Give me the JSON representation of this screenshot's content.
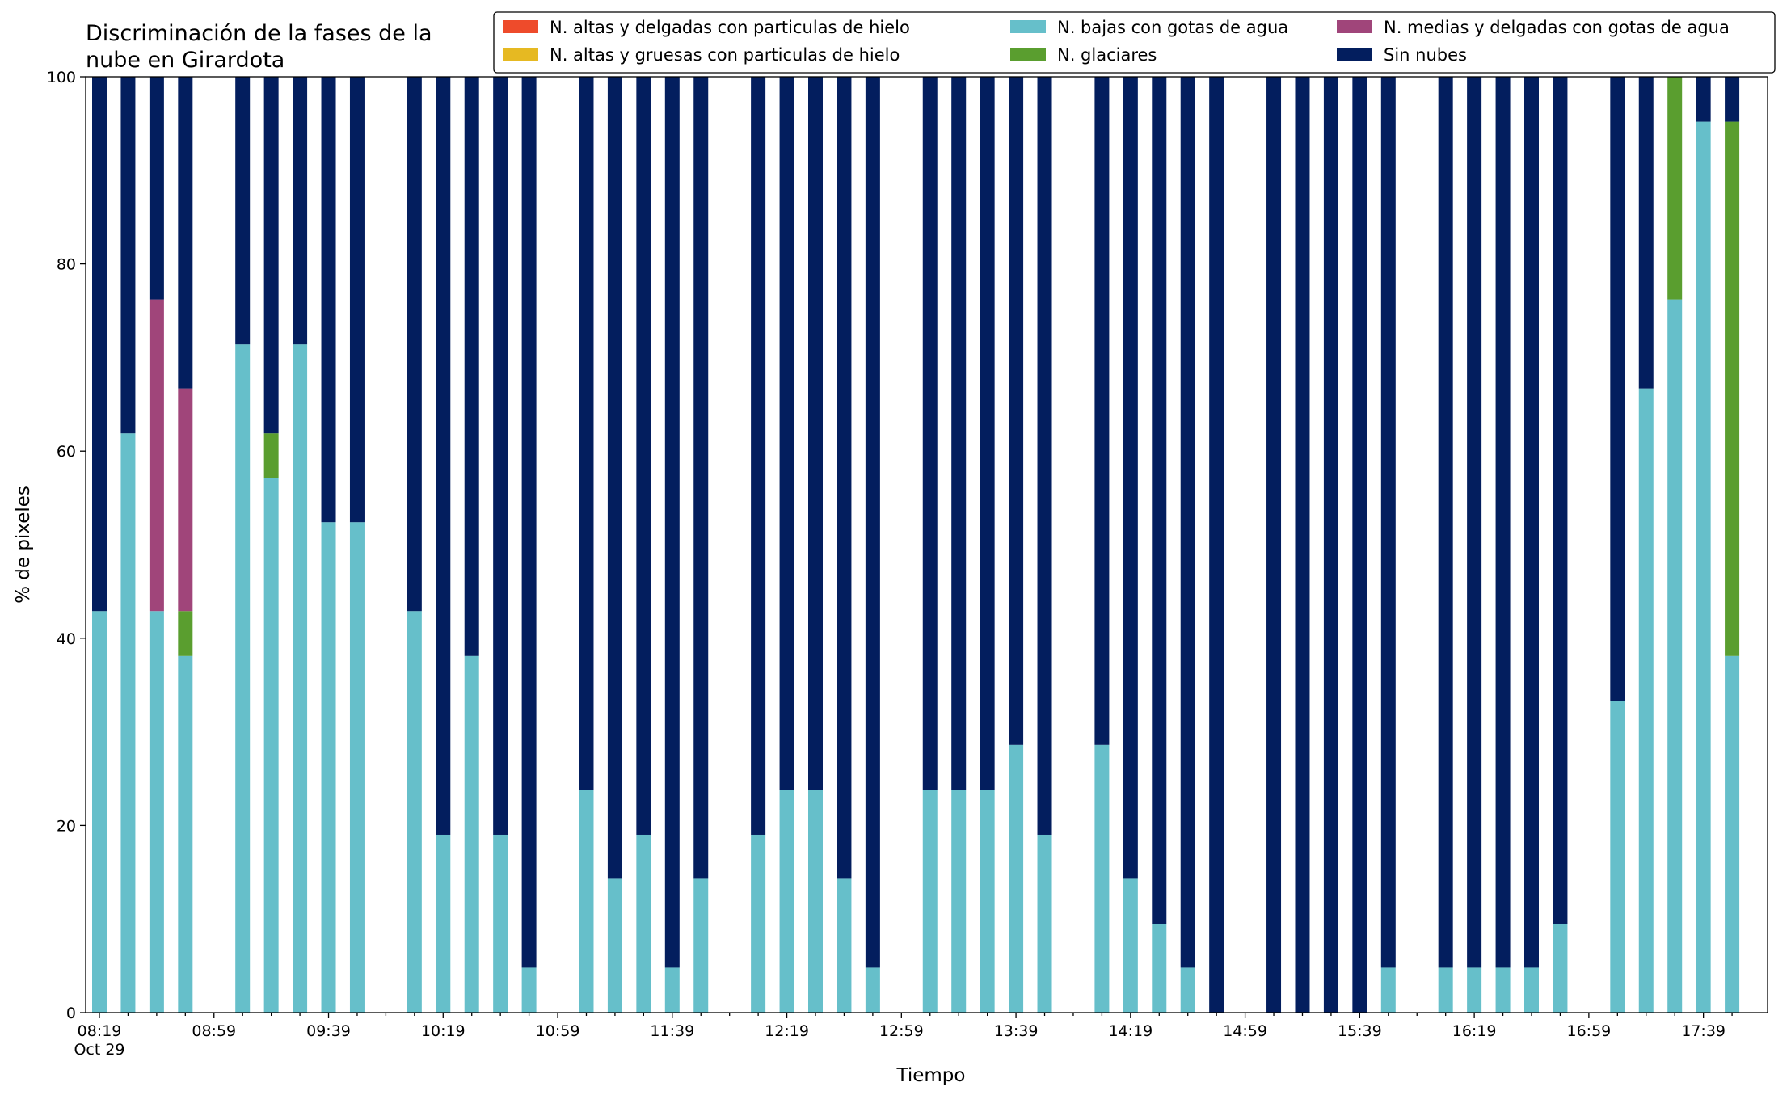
{
  "chart_data": {
    "type": "bar",
    "stacked": true,
    "title_lines": [
      "Discriminación de la fases de la",
      "nube en Girardota"
    ],
    "xlabel": "Tiempo",
    "ylabel": "% de pixeles",
    "ylim": [
      0,
      100
    ],
    "y_ticks": [
      "0",
      "20",
      "40",
      "60",
      "80",
      "100"
    ],
    "x_tick_labels": [
      "08:19",
      "08:59",
      "09:39",
      "10:19",
      "10:59",
      "11:39",
      "12:19",
      "12:59",
      "13:39",
      "14:19",
      "14:59",
      "15:39",
      "16:19",
      "16:59",
      "17:39"
    ],
    "x_date_label": "Oct 29",
    "x_interval_minutes": 10,
    "grid": false,
    "legend_position": "top-right",
    "slots": [
      "08:19",
      "08:29",
      "08:39",
      "08:49",
      "08:59",
      "09:09",
      "09:19",
      "09:29",
      "09:39",
      "09:49",
      "09:59",
      "10:09",
      "10:19",
      "10:29",
      "10:39",
      "10:49",
      "10:59",
      "11:09",
      "11:19",
      "11:29",
      "11:39",
      "11:49",
      "11:59",
      "12:09",
      "12:19",
      "12:29",
      "12:39",
      "12:49",
      "12:59",
      "13:09",
      "13:19",
      "13:29",
      "13:39",
      "13:49",
      "13:59",
      "14:09",
      "14:19",
      "14:29",
      "14:39",
      "14:49",
      "14:59",
      "15:09",
      "15:19",
      "15:29",
      "15:39",
      "15:49",
      "15:59",
      "16:09",
      "16:19",
      "16:29",
      "16:39",
      "16:49",
      "16:59",
      "17:09",
      "17:19",
      "17:29",
      "17:39",
      "17:49"
    ],
    "bars": [
      {
        "t": "08:19",
        "bajas": 42.9,
        "glaciares": 0,
        "medias": 0,
        "sin": 57.1
      },
      {
        "t": "08:29",
        "bajas": 61.9,
        "glaciares": 0,
        "medias": 0,
        "sin": 38.1
      },
      {
        "t": "08:39",
        "bajas": 42.9,
        "glaciares": 0,
        "medias": 33.3,
        "sin": 23.8
      },
      {
        "t": "08:49",
        "bajas": 38.1,
        "glaciares": 4.8,
        "medias": 23.8,
        "sin": 33.3
      },
      {
        "t": "09:14",
        "bajas": 71.4,
        "glaciares": 0,
        "medias": 0,
        "sin": 28.6
      },
      {
        "t": "09:24",
        "bajas": 57.1,
        "glaciares": 4.8,
        "medias": 0,
        "sin": 38.1
      },
      {
        "t": "09:34",
        "bajas": 71.4,
        "glaciares": 0,
        "medias": 0,
        "sin": 28.6
      },
      {
        "t": "09:44",
        "bajas": 52.4,
        "glaciares": 0,
        "medias": 0,
        "sin": 47.6
      },
      {
        "t": "09:54",
        "bajas": 52.4,
        "glaciares": 0,
        "medias": 0,
        "sin": 47.6
      },
      {
        "t": "10:14",
        "bajas": 42.9,
        "glaciares": 0,
        "medias": 0,
        "sin": 57.1
      },
      {
        "t": "10:24",
        "bajas": 19.0,
        "glaciares": 0,
        "medias": 0,
        "sin": 81.0
      },
      {
        "t": "10:34",
        "bajas": 38.1,
        "glaciares": 0,
        "medias": 0,
        "sin": 61.9
      },
      {
        "t": "10:44",
        "bajas": 19.0,
        "glaciares": 0,
        "medias": 0,
        "sin": 81.0
      },
      {
        "t": "10:54",
        "bajas": 4.8,
        "glaciares": 0,
        "medias": 0,
        "sin": 95.2
      },
      {
        "t": "11:14",
        "bajas": 23.8,
        "glaciares": 0,
        "medias": 0,
        "sin": 76.2
      },
      {
        "t": "11:24",
        "bajas": 14.3,
        "glaciares": 0,
        "medias": 0,
        "sin": 85.7
      },
      {
        "t": "11:34",
        "bajas": 19.0,
        "glaciares": 0,
        "medias": 0,
        "sin": 81.0
      },
      {
        "t": "11:44",
        "bajas": 4.8,
        "glaciares": 0,
        "medias": 0,
        "sin": 95.2
      },
      {
        "t": "11:54",
        "bajas": 14.3,
        "glaciares": 0,
        "medias": 0,
        "sin": 85.7
      },
      {
        "t": "12:14",
        "bajas": 19.0,
        "glaciares": 0,
        "medias": 0,
        "sin": 81.0
      },
      {
        "t": "12:24",
        "bajas": 23.8,
        "glaciares": 0,
        "medias": 0,
        "sin": 76.2
      },
      {
        "t": "12:34",
        "bajas": 23.8,
        "glaciares": 0,
        "medias": 0,
        "sin": 76.2
      },
      {
        "t": "12:44",
        "bajas": 14.3,
        "glaciares": 0,
        "medias": 0,
        "sin": 85.7
      },
      {
        "t": "12:54",
        "bajas": 4.8,
        "glaciares": 0,
        "medias": 0,
        "sin": 95.2
      },
      {
        "t": "13:14",
        "bajas": 23.8,
        "glaciares": 0,
        "medias": 0,
        "sin": 76.2
      },
      {
        "t": "13:24",
        "bajas": 23.8,
        "glaciares": 0,
        "medias": 0,
        "sin": 76.2
      },
      {
        "t": "13:34",
        "bajas": 23.8,
        "glaciares": 0,
        "medias": 0,
        "sin": 76.2
      },
      {
        "t": "13:44",
        "bajas": 28.6,
        "glaciares": 0,
        "medias": 0,
        "sin": 71.4
      },
      {
        "t": "13:54",
        "bajas": 19.0,
        "glaciares": 0,
        "medias": 0,
        "sin": 81.0
      },
      {
        "t": "14:14",
        "bajas": 28.6,
        "glaciares": 0,
        "medias": 0,
        "sin": 71.4
      },
      {
        "t": "14:24",
        "bajas": 14.3,
        "glaciares": 0,
        "medias": 0,
        "sin": 85.7
      },
      {
        "t": "14:34",
        "bajas": 9.5,
        "glaciares": 0,
        "medias": 0,
        "sin": 90.5
      },
      {
        "t": "14:44",
        "bajas": 4.8,
        "glaciares": 0,
        "medias": 0,
        "sin": 95.2
      },
      {
        "t": "14:54",
        "bajas": 0,
        "glaciares": 0,
        "medias": 0,
        "sin": 100
      },
      {
        "t": "15:14",
        "bajas": 0,
        "glaciares": 0,
        "medias": 0,
        "sin": 100
      },
      {
        "t": "15:24",
        "bajas": 0,
        "glaciares": 0,
        "medias": 0,
        "sin": 100
      },
      {
        "t": "15:34",
        "bajas": 0,
        "glaciares": 0,
        "medias": 0,
        "sin": 100
      },
      {
        "t": "15:44",
        "bajas": 0,
        "glaciares": 0,
        "medias": 0,
        "sin": 100
      },
      {
        "t": "15:54",
        "bajas": 4.8,
        "glaciares": 0,
        "medias": 0,
        "sin": 95.2
      },
      {
        "t": "16:14",
        "bajas": 4.8,
        "glaciares": 0,
        "medias": 0,
        "sin": 95.2
      },
      {
        "t": "16:24",
        "bajas": 4.8,
        "glaciares": 0,
        "medias": 0,
        "sin": 95.2
      },
      {
        "t": "16:34",
        "bajas": 4.8,
        "glaciares": 0,
        "medias": 0,
        "sin": 95.2
      },
      {
        "t": "16:44",
        "bajas": 4.8,
        "glaciares": 0,
        "medias": 0,
        "sin": 95.2
      },
      {
        "t": "16:54",
        "bajas": 9.5,
        "glaciares": 0,
        "medias": 0,
        "sin": 90.5
      },
      {
        "t": "17:14",
        "bajas": 33.3,
        "glaciares": 0,
        "medias": 0,
        "sin": 66.7
      },
      {
        "t": "17:24",
        "bajas": 66.7,
        "glaciares": 0,
        "medias": 0,
        "sin": 33.3
      },
      {
        "t": "17:34",
        "bajas": 76.2,
        "glaciares": 23.8,
        "medias": 0,
        "sin": 0
      },
      {
        "t": "17:44",
        "bajas": 95.2,
        "glaciares": 0,
        "medias": 0,
        "sin": 4.8
      },
      {
        "t": "17:54",
        "bajas": 38.1,
        "glaciares": 57.1,
        "medias": 0,
        "sin": 4.8
      }
    ],
    "bar_positions": [
      0,
      1,
      2,
      3,
      5,
      6,
      7,
      8,
      9,
      11,
      12,
      13,
      14,
      15,
      17,
      18,
      19,
      20,
      21,
      23,
      24,
      25,
      26,
      27,
      29,
      30,
      31,
      32,
      33,
      35,
      36,
      37,
      38,
      39,
      41,
      42,
      43,
      44,
      45,
      47,
      48,
      49,
      50,
      51,
      53,
      54,
      55,
      56,
      57
    ],
    "stack_order": [
      "bajas",
      "glaciares",
      "medias",
      "sin"
    ],
    "series": [
      {
        "key": "altas_delgadas",
        "name": "N. altas y delgadas con particulas de hielo",
        "color": "#ee4b2b"
      },
      {
        "key": "altas_gruesas",
        "name": "N. altas y gruesas con particulas de hielo",
        "color": "#e6b922"
      },
      {
        "key": "bajas",
        "name": "N. bajas con gotas de agua",
        "color": "#66bfca"
      },
      {
        "key": "glaciares",
        "name": "N. glaciares",
        "color": "#5a9e2f"
      },
      {
        "key": "medias",
        "name": "N. medias y delgadas con gotas de agua",
        "color": "#a0457a"
      },
      {
        "key": "sin",
        "name": "Sin nubes",
        "color": "#031e5e"
      }
    ]
  }
}
